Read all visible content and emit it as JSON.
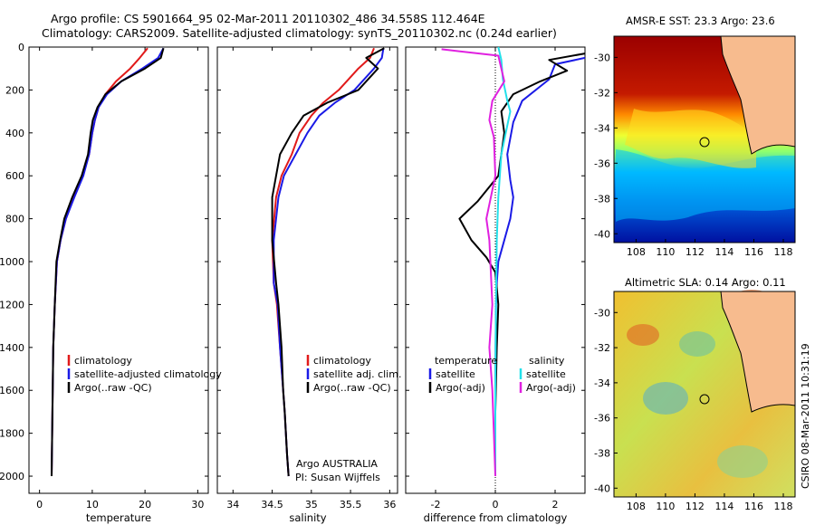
{
  "header": {
    "title_line1": "Argo profile: CS 5901664_95 02-Mar-2011 20110302_486 34.558S 112.464E",
    "title_line2": "Climatology: CARS2009. Satellite-adjusted climatology: synTS_20110302.nc (0.24d earlier)"
  },
  "chart_data": [
    {
      "type": "line",
      "xlabel": "temperature",
      "xlim": [
        -2,
        32
      ],
      "xticks": [
        0,
        10,
        20,
        30
      ],
      "ylim": [
        2080,
        0
      ],
      "yticks": [
        0,
        200,
        400,
        600,
        800,
        1000,
        1200,
        1400,
        1600,
        1800,
        2000
      ],
      "legend": [
        "climatology",
        "satellite-adjusted climatology",
        "Argo(..raw -QC)"
      ],
      "series": [
        {
          "name": "climatology",
          "color": "#e11a1a",
          "x": [
            20.5,
            19,
            17.2,
            14.5,
            12.5,
            11.2,
            10.5,
            10,
            9.4,
            8.2,
            6.5,
            5,
            4,
            3.3,
            2.9,
            2.6,
            2.5,
            2.4,
            2.3
          ],
          "y": [
            5,
            50,
            100,
            160,
            220,
            280,
            340,
            400,
            500,
            600,
            700,
            800,
            900,
            1000,
            1200,
            1400,
            1600,
            1800,
            2000
          ]
        },
        {
          "name": "satellite-adjusted climatology",
          "color": "#1a1ae6",
          "x": [
            23.5,
            22.5,
            19.5,
            15.5,
            12.8,
            11.2,
            10.5,
            10,
            9.4,
            8.3,
            6.6,
            5,
            4,
            3.3,
            2.9,
            2.6,
            2.5,
            2.4,
            2.3
          ],
          "y": [
            5,
            50,
            100,
            160,
            220,
            280,
            340,
            400,
            500,
            600,
            700,
            800,
            900,
            1000,
            1200,
            1400,
            1600,
            1800,
            2000
          ]
        },
        {
          "name": "Argo(..raw -QC)",
          "color": "#000000",
          "x": [
            23.5,
            23,
            20,
            15.5,
            12.5,
            11,
            10.1,
            9.7,
            9.2,
            8,
            6.2,
            4.7,
            3.9,
            3.2,
            2.9,
            2.6,
            2.5,
            2.4,
            2.3
          ],
          "y": [
            5,
            50,
            100,
            160,
            220,
            280,
            340,
            400,
            500,
            600,
            700,
            800,
            900,
            1000,
            1200,
            1400,
            1600,
            1800,
            2000
          ]
        }
      ]
    },
    {
      "type": "line",
      "xlabel": "salinity",
      "xlim": [
        33.8,
        36.1
      ],
      "xticks": [
        34,
        34.5,
        35,
        35.5,
        36
      ],
      "ylim": [
        2080,
        0
      ],
      "legend": [
        "climatology",
        "satellite adj. clim.",
        "Argo(..raw -QC)"
      ],
      "annotation": [
        "Argo AUSTRALIA",
        "PI: Susan Wijffels"
      ],
      "series": [
        {
          "name": "climatology",
          "color": "#e11a1a",
          "x": [
            35.8,
            35.75,
            35.6,
            35.35,
            35.15,
            35,
            34.85,
            34.75,
            34.62,
            34.55,
            34.5,
            34.52,
            34.56,
            34.6,
            34.64,
            34.66,
            34.69,
            34.71
          ],
          "y": [
            5,
            50,
            100,
            200,
            260,
            320,
            400,
            500,
            600,
            700,
            900,
            1100,
            1200,
            1400,
            1600,
            1700,
            1900,
            2000
          ]
        },
        {
          "name": "satellite adj. clim.",
          "color": "#1a1ae6",
          "x": [
            35.92,
            35.9,
            35.8,
            35.55,
            35.3,
            35.1,
            34.95,
            34.8,
            34.65,
            34.58,
            34.52,
            34.52,
            34.57,
            34.6,
            34.64,
            34.66,
            34.69,
            34.71
          ],
          "y": [
            5,
            50,
            100,
            200,
            260,
            320,
            400,
            500,
            600,
            700,
            900,
            1100,
            1200,
            1400,
            1600,
            1700,
            1900,
            2000
          ]
        },
        {
          "name": "Argo(..raw -QC)",
          "color": "#000000",
          "x": [
            35.93,
            35.7,
            35.85,
            35.6,
            35.2,
            34.9,
            34.75,
            34.6,
            34.55,
            34.5,
            34.5,
            34.55,
            34.58,
            34.62,
            34.64,
            34.66,
            34.69,
            34.71
          ],
          "y": [
            5,
            50,
            100,
            200,
            260,
            320,
            400,
            500,
            600,
            700,
            900,
            1100,
            1200,
            1400,
            1600,
            1700,
            1900,
            2000
          ]
        }
      ]
    },
    {
      "type": "line",
      "xlabel": "difference from climatology",
      "xlim": [
        -3,
        3
      ],
      "xticks": [
        -2,
        0,
        2
      ],
      "ylim": [
        2080,
        0
      ],
      "legend": {
        "temperature": [
          "satellite",
          "Argo(-adj)"
        ],
        "salinity": [
          "satellite",
          "Argo(-adj)"
        ]
      },
      "legend_headers": [
        "temperature",
        "salinity"
      ],
      "series": [
        {
          "name": "temperature satellite",
          "color": "#1a1ae6",
          "x": [
            3,
            2,
            1.8,
            0.9,
            0.6,
            0.4,
            0.5,
            0.6,
            0.5,
            0.3,
            0.1,
            0.05,
            0.02,
            0.01,
            0,
            0
          ],
          "y": [
            50,
            80,
            150,
            250,
            350,
            500,
            620,
            700,
            800,
            900,
            1000,
            1100,
            1200,
            1400,
            1700,
            2000
          ]
        },
        {
          "name": "temperature Argo(-adj)",
          "color": "#000000",
          "x": [
            3,
            1.8,
            2.4,
            1.5,
            0.6,
            0.2,
            0.3,
            0.1,
            -0.6,
            -1.2,
            -0.8,
            -0.3,
            0,
            0.1,
            0.05,
            0,
            0
          ],
          "y": [
            30,
            60,
            110,
            160,
            220,
            300,
            400,
            600,
            720,
            800,
            900,
            980,
            1050,
            1200,
            1400,
            1700,
            2000
          ]
        },
        {
          "name": "salinity satellite",
          "color": "#22e0ea",
          "x": [
            0.1,
            0.2,
            0.25,
            0.4,
            0.5,
            0.35,
            0.2,
            0.1,
            0.05,
            0.02,
            0,
            0
          ],
          "y": [
            0,
            60,
            150,
            250,
            300,
            400,
            500,
            700,
            900,
            1200,
            1600,
            2000
          ]
        },
        {
          "name": "salinity Argo(-adj)",
          "color": "#e020e0",
          "x": [
            -1.8,
            0.1,
            0.3,
            -0.1,
            -0.2,
            -0.05,
            0,
            -0.3,
            -0.2,
            -0.1,
            -0.2,
            -0.1,
            -0.05,
            0
          ],
          "y": [
            10,
            40,
            160,
            250,
            340,
            420,
            600,
            800,
            900,
            1200,
            1400,
            1600,
            1800,
            2000
          ]
        }
      ]
    },
    {
      "type": "heatmap",
      "title": "AMSR-E SST: 23.3 Argo: 23.6",
      "xticks": [
        108,
        110,
        112,
        114,
        116,
        118
      ],
      "yticks": [
        -30,
        -32,
        -34,
        -36,
        -38,
        -40
      ],
      "xlim": [
        106.5,
        118.8
      ],
      "ylim": [
        -40.5,
        -28.8
      ],
      "marker": {
        "lon": 112.46,
        "lat": -34.56
      }
    },
    {
      "type": "heatmap",
      "title": "Altimetric SLA: 0.14 Argo: 0.11",
      "xticks": [
        108,
        110,
        112,
        114,
        116,
        118
      ],
      "yticks": [
        -30,
        -32,
        -34,
        -36,
        -38,
        -40
      ],
      "xlim": [
        106.5,
        118.8
      ],
      "ylim": [
        -40.5,
        -28.8
      ],
      "marker": {
        "lon": 112.46,
        "lat": -34.56
      }
    }
  ],
  "footer": {
    "credit": "CSIRO 08-Mar-2011 10:31:19"
  }
}
